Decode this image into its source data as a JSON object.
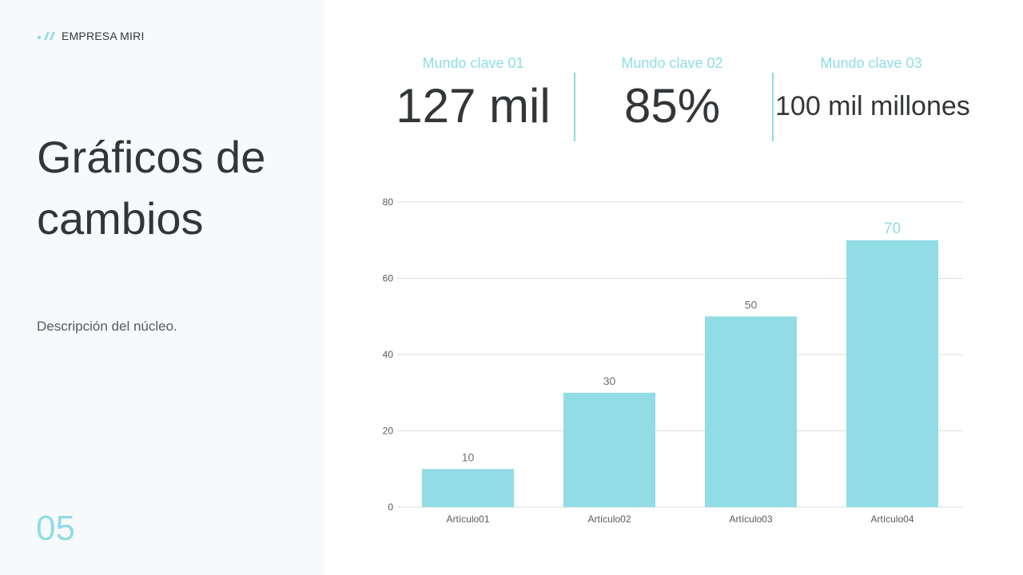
{
  "brand": {
    "name": "EMPRESA MIRI"
  },
  "slide": {
    "title": "Gráficos de\n cambios",
    "description": "Descripción del núcleo.",
    "page_number": "05"
  },
  "kpis": [
    {
      "label": "Mundo clave 01",
      "value": "127 mil"
    },
    {
      "label": "Mundo clave 02",
      "value": "85%"
    },
    {
      "label": "Mundo clave 03",
      "value": "100 mil millones"
    }
  ],
  "colors": {
    "accent": "#8edde7",
    "bar": "#92dce5",
    "text": "#333639",
    "panel": "#f8f9fb",
    "grid": "#d9dcdf"
  },
  "chart_data": {
    "type": "bar",
    "categories": [
      "Artículo01",
      "Artículo02",
      "Artículo03",
      "Artículo04"
    ],
    "values": [
      10,
      30,
      50,
      70
    ],
    "title": "",
    "xlabel": "",
    "ylabel": "",
    "ylim": [
      0,
      80
    ],
    "yticks": [
      0,
      20,
      40,
      60,
      80
    ],
    "grid": true,
    "data_labels": true
  }
}
